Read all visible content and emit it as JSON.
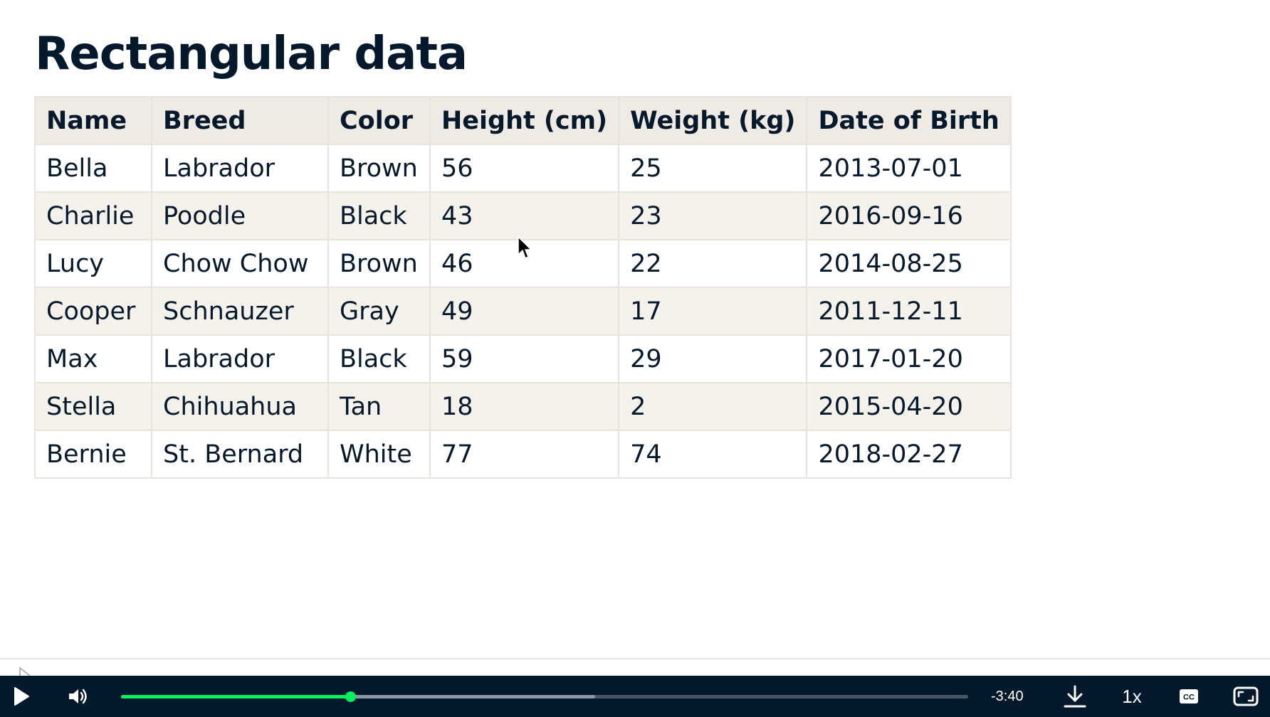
{
  "slide": {
    "title": "Rectangular data"
  },
  "table": {
    "headers": [
      "Name",
      "Breed",
      "Color",
      "Height (cm)",
      "Weight (kg)",
      "Date of Birth"
    ],
    "rows": [
      [
        "Bella",
        "Labrador",
        "Brown",
        "56",
        "25",
        "2013-07-01"
      ],
      [
        "Charlie",
        "Poodle",
        "Black",
        "43",
        "23",
        "2016-09-16"
      ],
      [
        "Lucy",
        "Chow Chow",
        "Brown",
        "46",
        "22",
        "2014-08-25"
      ],
      [
        "Cooper",
        "Schnauzer",
        "Gray",
        "49",
        "17",
        "2011-12-11"
      ],
      [
        "Max",
        "Labrador",
        "Black",
        "59",
        "29",
        "2017-01-20"
      ],
      [
        "Stella",
        "Chihuahua",
        "Tan",
        "18",
        "2",
        "2015-04-20"
      ],
      [
        "Bernie",
        "St. Bernard",
        "White",
        "77",
        "74",
        "2018-02-27"
      ]
    ]
  },
  "player": {
    "time_remaining": "-3:40",
    "speed_label": "1x",
    "played_fraction": 0.271,
    "buffered_fraction": 0.56,
    "colors": {
      "bar_background": "#05192d",
      "progress_played": "#03ef62"
    },
    "icons": {
      "play": "play-icon",
      "volume": "volume-icon",
      "download": "download-icon",
      "captions": "cc-icon",
      "fullscreen": "fullscreen-icon"
    }
  }
}
